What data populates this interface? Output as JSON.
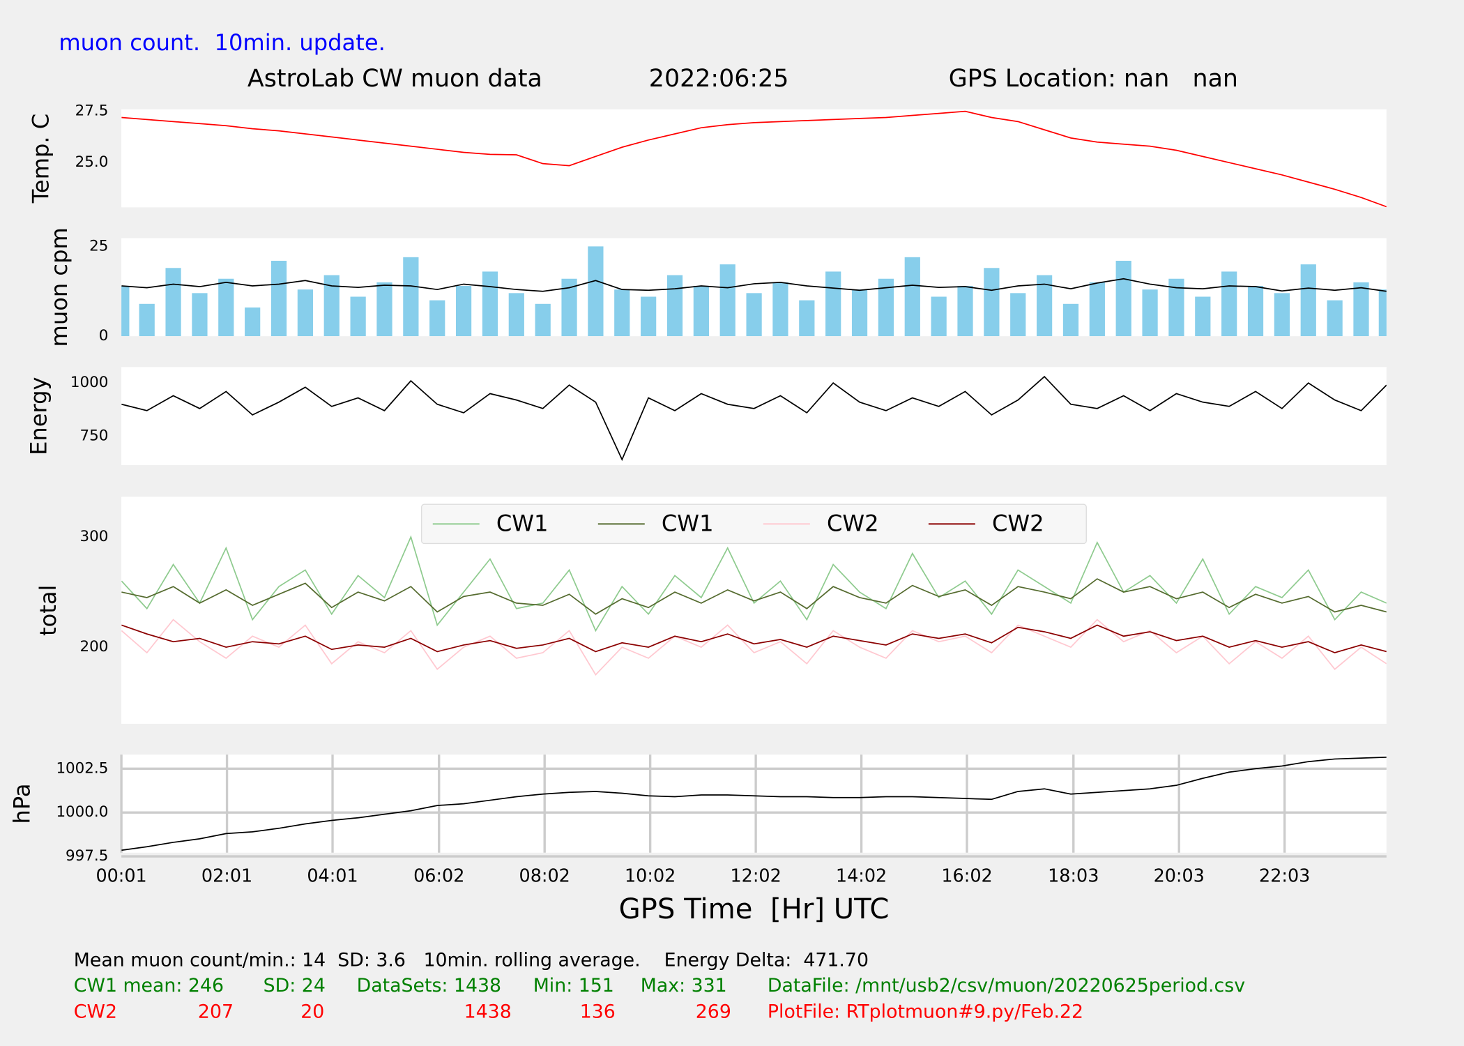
{
  "header": {
    "note": "muon count.  10min. update.",
    "title": "AstroLab CW muon data",
    "date": "2022:06:25",
    "location": "GPS Location: nan   nan"
  },
  "chart_data": [
    {
      "type": "line",
      "y_label": "Temp. C",
      "xlim": [
        0.0167,
        23.98
      ],
      "ylim": [
        22.82,
        27.6
      ],
      "yticks": [
        {
          "value": 25,
          "label": "25.0"
        },
        27.5
      ],
      "x": [
        0.02,
        0.5,
        1,
        1.5,
        2,
        2.5,
        3,
        3.5,
        4,
        4.5,
        5,
        5.5,
        6,
        6.5,
        7,
        7.5,
        8,
        8.5,
        9,
        9.5,
        10,
        10.5,
        11,
        11.5,
        12,
        12.5,
        13,
        13.5,
        14,
        14.5,
        15,
        15.5,
        16,
        16.5,
        17,
        17.5,
        18,
        18.5,
        19,
        19.5,
        20,
        20.5,
        21,
        21.5,
        22,
        22.5,
        23,
        23.5,
        23.98
      ],
      "series": [
        {
          "type": "line",
          "color": "#ff0000",
          "values": [
            27.2,
            27.1,
            27.0,
            26.9,
            26.8,
            26.65,
            26.55,
            26.4,
            26.25,
            26.1,
            25.95,
            25.8,
            25.65,
            25.5,
            25.4,
            25.38,
            24.95,
            24.85,
            25.3,
            25.75,
            26.1,
            26.4,
            26.7,
            26.85,
            26.95,
            27.0,
            27.05,
            27.1,
            27.15,
            27.2,
            27.3,
            27.4,
            27.5,
            27.2,
            27.0,
            26.6,
            26.2,
            26.0,
            25.9,
            25.8,
            25.6,
            25.3,
            25.0,
            24.7,
            24.4,
            24.05,
            23.7,
            23.3,
            22.85
          ]
        }
      ]
    },
    {
      "type": "line",
      "y_label": "muon cpm",
      "xlim": [
        0.0167,
        23.98
      ],
      "ylim": [
        0,
        27.3
      ],
      "yticks": [
        0,
        25
      ],
      "x": [
        0.02,
        0.5,
        1,
        1.5,
        2,
        2.5,
        3,
        3.5,
        4,
        4.5,
        5,
        5.5,
        6,
        6.5,
        7,
        7.5,
        8,
        8.5,
        9,
        9.5,
        10,
        10.5,
        11,
        11.5,
        12,
        12.5,
        13,
        13.5,
        14,
        14.5,
        15,
        15.5,
        16,
        16.5,
        17,
        17.5,
        18,
        18.5,
        19,
        19.5,
        20,
        20.5,
        21,
        21.5,
        22,
        22.5,
        23,
        23.5,
        23.98
      ],
      "series": [
        {
          "type": "bar",
          "color": "#87ceeb",
          "values": [
            14,
            9,
            19,
            12,
            16,
            8,
            21,
            13,
            17,
            11,
            15,
            22,
            10,
            14,
            18,
            12,
            9,
            16,
            25,
            13,
            11,
            17,
            14,
            20,
            12,
            15,
            10,
            18,
            13,
            16,
            22,
            11,
            14,
            19,
            12,
            17,
            9,
            15,
            21,
            13,
            16,
            11,
            18,
            14,
            12,
            20,
            10,
            15,
            13
          ]
        },
        {
          "type": "line",
          "color": "#000000",
          "values": [
            14,
            13.5,
            14.5,
            13.8,
            15,
            14,
            14.5,
            15.5,
            14,
            13.6,
            14.2,
            14,
            13,
            14.5,
            13.8,
            13,
            12.5,
            13.5,
            15.5,
            13,
            12.8,
            13.2,
            14,
            13.5,
            14.6,
            15,
            14,
            13.4,
            12.8,
            13.5,
            14.2,
            13.6,
            13.8,
            12.8,
            14,
            14.5,
            13.2,
            14.8,
            16,
            14.5,
            13.5,
            13.2,
            14,
            13.8,
            12.6,
            13.4,
            12.8,
            13.5,
            12.5
          ]
        }
      ]
    },
    {
      "type": "line",
      "y_label": "Energy",
      "xlim": [
        0.0167,
        23.98
      ],
      "ylim": [
        614,
        1075
      ],
      "yticks": [
        750,
        1000
      ],
      "x": [
        0.02,
        0.5,
        1,
        1.5,
        2,
        2.5,
        3,
        3.5,
        4,
        4.5,
        5,
        5.5,
        6,
        6.5,
        7,
        7.5,
        8,
        8.5,
        9,
        9.5,
        10,
        10.5,
        11,
        11.5,
        12,
        12.5,
        13,
        13.5,
        14,
        14.5,
        15,
        15.5,
        16,
        16.5,
        17,
        17.5,
        18,
        18.5,
        19,
        19.5,
        20,
        20.5,
        21,
        21.5,
        22,
        22.5,
        23,
        23.5,
        23.98
      ],
      "series": [
        {
          "type": "line",
          "color": "#000000",
          "values": [
            900,
            870,
            940,
            880,
            960,
            850,
            910,
            980,
            890,
            930,
            870,
            1010,
            900,
            860,
            950,
            920,
            880,
            990,
            910,
            640,
            930,
            870,
            950,
            900,
            880,
            940,
            860,
            1000,
            910,
            870,
            930,
            890,
            960,
            850,
            920,
            1030,
            900,
            880,
            940,
            870,
            950,
            910,
            890,
            960,
            880,
            1000,
            920,
            870,
            990
          ]
        }
      ]
    },
    {
      "type": "line",
      "y_label": "total",
      "xlim": [
        0.0167,
        23.98
      ],
      "ylim": [
        130.5,
        336.4
      ],
      "yticks": [
        200,
        300
      ],
      "legend": "upper center",
      "x": [
        0.02,
        0.5,
        1,
        1.5,
        2,
        2.5,
        3,
        3.5,
        4,
        4.5,
        5,
        5.5,
        6,
        6.5,
        7,
        7.5,
        8,
        8.5,
        9,
        9.5,
        10,
        10.5,
        11,
        11.5,
        12,
        12.5,
        13,
        13.5,
        14,
        14.5,
        15,
        15.5,
        16,
        16.5,
        17,
        17.5,
        18,
        18.5,
        19,
        19.5,
        20,
        20.5,
        21,
        21.5,
        22,
        22.5,
        23,
        23.5,
        23.98
      ],
      "series": [
        {
          "name": "CW1",
          "type": "line",
          "color": "#8fcb8f",
          "values": [
            260,
            235,
            275,
            240,
            290,
            225,
            255,
            270,
            230,
            265,
            245,
            300,
            220,
            250,
            280,
            235,
            240,
            270,
            215,
            255,
            230,
            265,
            245,
            290,
            240,
            260,
            225,
            275,
            250,
            235,
            285,
            245,
            260,
            230,
            270,
            255,
            240,
            295,
            250,
            265,
            240,
            280,
            230,
            255,
            245,
            270,
            225,
            250,
            240
          ]
        },
        {
          "name": "CW1",
          "type": "line",
          "color": "#556b2f",
          "values": [
            250,
            245,
            255,
            240,
            252,
            238,
            248,
            258,
            236,
            250,
            242,
            255,
            232,
            246,
            250,
            240,
            238,
            248,
            230,
            244,
            236,
            250,
            240,
            252,
            242,
            250,
            235,
            255,
            245,
            240,
            256,
            246,
            252,
            238,
            255,
            250,
            244,
            262,
            250,
            255,
            244,
            250,
            236,
            248,
            240,
            246,
            232,
            238,
            232
          ]
        },
        {
          "name": "CW2",
          "type": "line",
          "color": "#ffc8d0",
          "values": [
            215,
            195,
            225,
            205,
            190,
            210,
            200,
            220,
            185,
            205,
            195,
            215,
            180,
            200,
            210,
            190,
            195,
            215,
            175,
            200,
            190,
            210,
            200,
            220,
            195,
            205,
            185,
            215,
            200,
            190,
            215,
            205,
            210,
            195,
            220,
            210,
            200,
            225,
            205,
            215,
            195,
            210,
            185,
            205,
            190,
            210,
            180,
            200,
            185
          ]
        },
        {
          "name": "CW2",
          "type": "line",
          "color": "#8b0000",
          "values": [
            220,
            212,
            205,
            208,
            200,
            205,
            203,
            210,
            198,
            202,
            200,
            208,
            196,
            202,
            206,
            199,
            202,
            208,
            196,
            204,
            200,
            210,
            205,
            212,
            203,
            207,
            200,
            210,
            206,
            202,
            212,
            208,
            212,
            204,
            218,
            214,
            208,
            220,
            210,
            214,
            206,
            210,
            200,
            206,
            200,
            205,
            195,
            202,
            196
          ]
        }
      ]
    },
    {
      "type": "line",
      "y_label": "hPa",
      "x_label": "GPS Time  [Hr] UTC",
      "grid": true,
      "xlim": [
        0.0167,
        23.98
      ],
      "ylim": [
        997.71,
        1003.3
      ],
      "yticks": [
        997.5,
        {
          "value": 1000,
          "label": "1000.0"
        },
        1002.5
      ],
      "xticks": [
        {
          "value": 0.0167,
          "label": "00:01"
        },
        {
          "value": 2.0167,
          "label": "02:01"
        },
        {
          "value": 4.0167,
          "label": "04:01"
        },
        {
          "value": 6.0333,
          "label": "06:02"
        },
        {
          "value": 8.0333,
          "label": "08:02"
        },
        {
          "value": 10.0333,
          "label": "10:02"
        },
        {
          "value": 12.0333,
          "label": "12:02"
        },
        {
          "value": 14.0333,
          "label": "14:02"
        },
        {
          "value": 16.0333,
          "label": "16:02"
        },
        {
          "value": 18.05,
          "label": "18:03"
        },
        {
          "value": 20.05,
          "label": "20:03"
        },
        {
          "value": 22.05,
          "label": "22:03"
        }
      ],
      "x": [
        0.02,
        0.5,
        1,
        1.5,
        2,
        2.5,
        3,
        3.5,
        4,
        4.5,
        5,
        5.5,
        6,
        6.5,
        7,
        7.5,
        8,
        8.5,
        9,
        9.5,
        10,
        10.5,
        11,
        11.5,
        12,
        12.5,
        13,
        13.5,
        14,
        14.5,
        15,
        15.5,
        16,
        16.5,
        17,
        17.5,
        18,
        18.5,
        19,
        19.5,
        20,
        20.5,
        21,
        21.5,
        22,
        22.5,
        23,
        23.5,
        23.98
      ],
      "series": [
        {
          "type": "line",
          "color": "#000000",
          "values": [
            997.85,
            998.05,
            998.3,
            998.5,
            998.8,
            998.9,
            999.1,
            999.35,
            999.55,
            999.7,
            999.9,
            1000.1,
            1000.4,
            1000.5,
            1000.7,
            1000.9,
            1001.05,
            1001.15,
            1001.2,
            1001.1,
            1000.95,
            1000.9,
            1001.0,
            1001.0,
            1000.95,
            1000.9,
            1000.9,
            1000.85,
            1000.85,
            1000.9,
            1000.9,
            1000.85,
            1000.8,
            1000.75,
            1001.2,
            1001.35,
            1001.05,
            1001.15,
            1001.25,
            1001.35,
            1001.55,
            1001.95,
            1002.3,
            1002.5,
            1002.65,
            1002.9,
            1003.05,
            1003.1,
            1003.15
          ]
        }
      ]
    }
  ],
  "footer": {
    "summary": "Mean muon count/min.: 14  SD: 3.6   10min. rolling average.    Energy Delta:  471.70",
    "cw1": [
      "CW1 mean: 246",
      "SD: 24",
      "DataSets: 1438",
      "Min: 151",
      "Max: 331",
      "DataFile: /mnt/usb2/csv/muon/20220625period.csv"
    ],
    "cw2": [
      "CW2",
      "207",
      "20",
      "1438",
      "136",
      "269",
      "PlotFile: RTplotmuon#9.py/Feb.22"
    ]
  }
}
